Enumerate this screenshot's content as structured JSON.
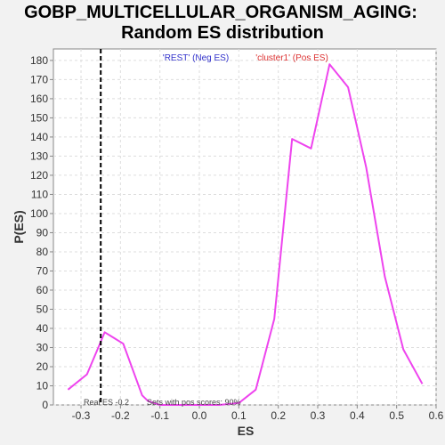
{
  "chart_data": {
    "type": "line",
    "title_line1": "GOBP_MULTICELLULAR_ORGANISM_AGING:",
    "title_line2": "Random ES distribution",
    "xlabel": "ES",
    "ylabel": "P(ES)",
    "xlim": [
      -0.37,
      0.6
    ],
    "ylim": [
      0,
      186
    ],
    "x_ticks": [
      -0.3,
      -0.2,
      -0.1,
      0.0,
      0.1,
      0.2,
      0.3,
      0.4,
      0.5,
      0.6
    ],
    "x_tick_labels": [
      "-0.3",
      "-0.2",
      "-0.1",
      "0.0",
      "0.1",
      "0.2",
      "0.3",
      "0.4",
      "0.5",
      "0.6"
    ],
    "y_ticks": [
      0,
      10,
      20,
      30,
      40,
      50,
      60,
      70,
      80,
      90,
      100,
      110,
      120,
      130,
      140,
      150,
      160,
      170,
      180
    ],
    "y_tick_labels": [
      "0",
      "10",
      "20",
      "30",
      "40",
      "50",
      "60",
      "70",
      "80",
      "90",
      "100",
      "110",
      "120",
      "130",
      "140",
      "150",
      "160",
      "170",
      "180"
    ],
    "grid": true,
    "series": [
      {
        "name": "",
        "color": "#ee44ee",
        "x": [
          -0.333,
          -0.285,
          -0.25,
          -0.24,
          -0.193,
          -0.145,
          -0.13,
          -0.1,
          -0.05,
          0.0,
          0.05,
          0.1,
          0.143,
          0.19,
          0.235,
          0.283,
          0.33,
          0.377,
          0.423,
          0.47,
          0.517,
          0.565
        ],
        "y": [
          8,
          16,
          33,
          38,
          32,
          5,
          2,
          0,
          0,
          0,
          0,
          1,
          8,
          45,
          139,
          134,
          178,
          166,
          124,
          67,
          29,
          11
        ]
      }
    ],
    "real_es_line": {
      "x": -0.25,
      "color": "#000000",
      "style": "dashed"
    },
    "legend": [
      {
        "text": "'REST' (Neg ES)",
        "color": "#3333cc"
      },
      {
        "text": "'cluster1' (Pos ES)",
        "color": "#dd3333"
      }
    ],
    "annotations": {
      "real_es": "Real ES -0.2",
      "pos_scores": "Sets with pos scores: 90%"
    }
  }
}
